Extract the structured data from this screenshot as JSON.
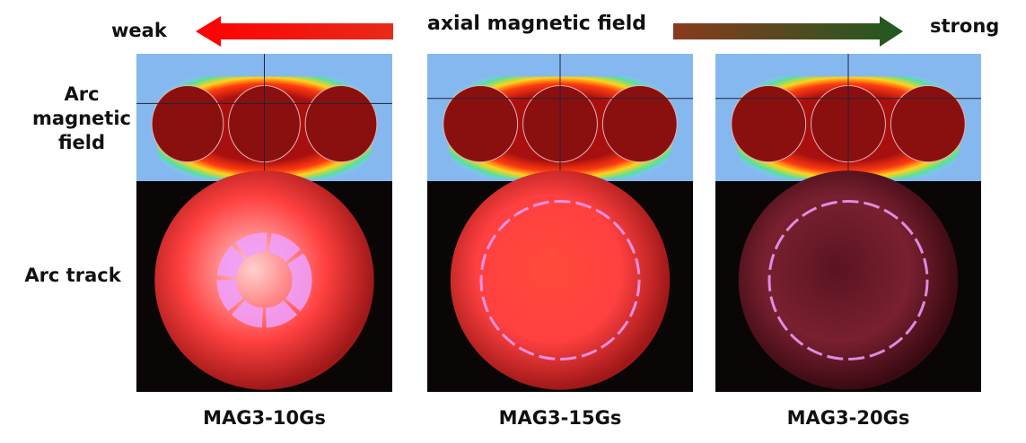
{
  "header": {
    "left": "weak",
    "center": "axial magnetic field",
    "right": "strong"
  },
  "rows": [
    "Arc magnetic field",
    "Arc track"
  ],
  "panels": [
    {
      "caption": "MAG3-10Gs"
    },
    {
      "caption": "MAG3-15Gs"
    },
    {
      "caption": "MAG3-20Gs"
    }
  ]
}
